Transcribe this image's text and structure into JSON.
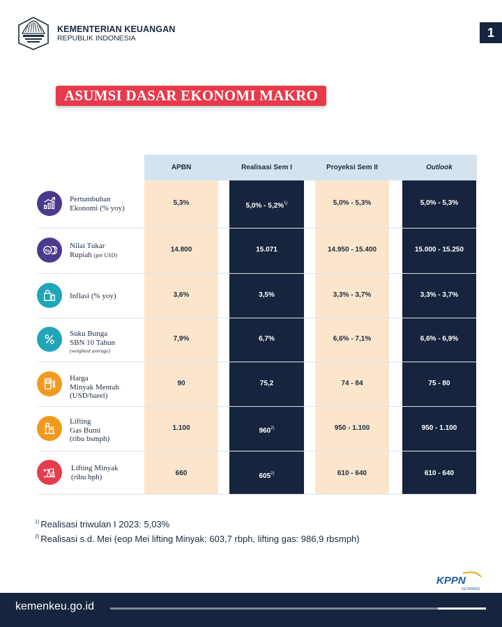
{
  "header": {
    "org_name": "KEMENTERIAN KEUANGAN",
    "org_sub": "REPUBLIK INDONESIA",
    "page_number": "1"
  },
  "title": "ASUMSI DASAR EKONOMI MAKRO",
  "table": {
    "columns": [
      "APBN",
      "Realisasi Sem I",
      "Proyeksi Sem II",
      "Outlook"
    ],
    "rows": [
      {
        "label_line1": "Pertumbuhan",
        "label_line2": "Ekonomi (% yoy)",
        "icon": "growth-chart-icon",
        "icon_color": "#4b3a8c",
        "apbn": "5,3%",
        "realisasi": "5,0% - 5,2%",
        "realisasi_note": "1)",
        "proyeksi": "5,0% - 5,3%",
        "outlook": "5,0% - 5,3%"
      },
      {
        "label_line1": "Nilai Tukar",
        "label_line2": "Rupiah",
        "label_small": "(per USD)",
        "icon": "currency-exchange-icon",
        "icon_color": "#4b3a8c",
        "apbn": "14.800",
        "realisasi": "15.071",
        "proyeksi": "14.950 - 15.400",
        "outlook": "15.000 - 15.250"
      },
      {
        "label_line1": "Inflasi (% yoy)",
        "icon": "shopping-bag-icon",
        "icon_color": "#1fa6b8",
        "apbn": "3,6%",
        "realisasi": "3,5%",
        "proyeksi": "3,3% - 3,7%",
        "outlook": "3,3% - 3,7%"
      },
      {
        "label_line1": "Suku Bunga",
        "label_line2": "SBN 10 Tahun",
        "label_small": "(weighted average)",
        "icon": "percent-icon",
        "icon_color": "#1fa6b8",
        "apbn": "7,9%",
        "realisasi": "6,7%",
        "proyeksi": "6,6% - 7,1%",
        "outlook": "6,6% - 6,9%"
      },
      {
        "label_line1": "Harga",
        "label_line2": "Minyak Mentah",
        "label_line3": "(USD/barel)",
        "icon": "fuel-pump-icon",
        "icon_color": "#f29a1f",
        "apbn": "90",
        "realisasi": "75,2",
        "proyeksi": "74 - 84",
        "outlook": "75 - 80"
      },
      {
        "label_line1": "Lifting",
        "label_line2": "Gas Bumi",
        "label_line3": "(ribu bsmph)",
        "icon": "gas-well-icon",
        "icon_color": "#f29a1f",
        "apbn": "1.100",
        "realisasi": "960",
        "realisasi_note": "2)",
        "proyeksi": "950 - 1.100",
        "outlook": "950 - 1.100"
      },
      {
        "label_line1": "Lifting Minyak",
        "label_line2": "(ribu bph)",
        "icon": "oil-pump-jack-icon",
        "icon_color": "#e53b4b",
        "apbn": "660",
        "realisasi": "605",
        "realisasi_note": "2)",
        "proyeksi": "610 - 640",
        "outlook": "610 - 640"
      }
    ]
  },
  "notes": [
    {
      "mark": "1)",
      "text": "Realisasi triwulan I 2023: 5,03%"
    },
    {
      "mark": "2)",
      "text": "Realisasi s.d. Mei (eop Mei lifting Minyak: 603,7 rbph, lifting gas: 986,9 rbsmph)"
    }
  ],
  "kppn": {
    "name": "KPPN",
    "sub": "KETAPANG"
  },
  "footer": {
    "url": "kemenkeu.go.id"
  },
  "colors": {
    "navy": "#16253d",
    "peach": "#fbe6cd",
    "header_blue": "#d3e4f0",
    "title_red": "#e63a4c"
  }
}
